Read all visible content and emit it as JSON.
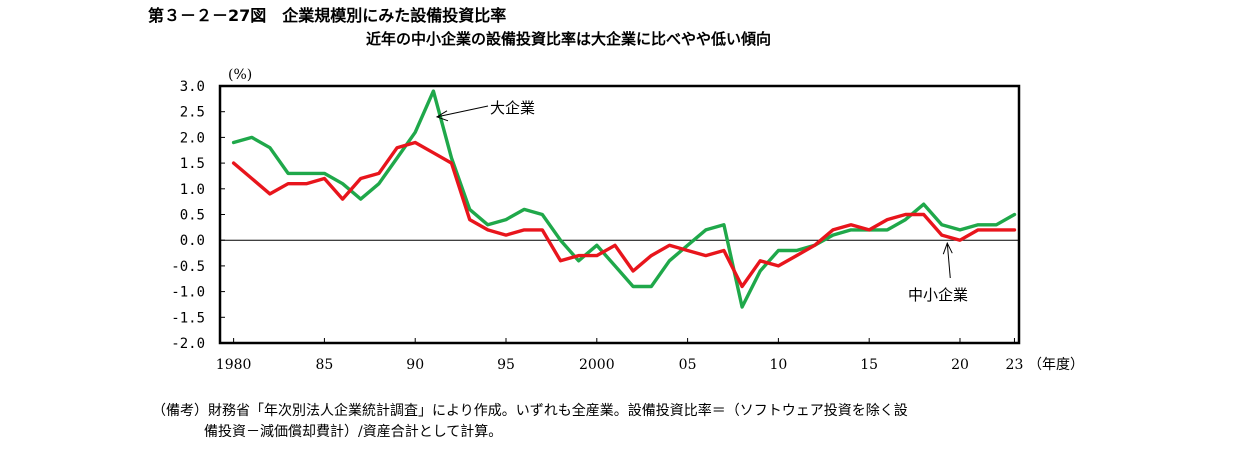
{
  "title": "第３－２－27図　企業規模別にみた設備投資比率",
  "subtitle": "近年の中小企業の設備投資比率は大企業に比べやや低い傾向",
  "note": {
    "line1": "（備考）財務省「年次別法人企業統計調査」により作成。いずれも全産業。設備投資比率＝（ソフトウェア投資を除く設",
    "line2": "備投資－減価償却費計）/資産合計として計算。"
  },
  "chart_data": {
    "type": "line",
    "ylabel": "(%)",
    "xlabel": "（年度）",
    "ylim": [
      -2.0,
      3.0
    ],
    "xlim": [
      1980,
      2023
    ],
    "grid": false,
    "yticks": [
      3.0,
      2.5,
      2.0,
      1.5,
      1.0,
      0.5,
      0.0,
      -0.5,
      -1.0,
      -1.5,
      -2.0
    ],
    "ytick_labels": [
      "3.0",
      "2.5",
      "2.0",
      "1.5",
      "1.0",
      "0.5",
      "0.0",
      "-0.5",
      "-1.0",
      "-1.5",
      "-2.0"
    ],
    "xticks": [
      1980,
      1985,
      1990,
      1995,
      2000,
      2005,
      2010,
      2015,
      2020,
      2023
    ],
    "xtick_labels": [
      "1980",
      "85",
      "90",
      "95",
      "2000",
      "05",
      "10",
      "15",
      "20",
      "23"
    ],
    "x": [
      1980,
      1981,
      1982,
      1983,
      1984,
      1985,
      1986,
      1987,
      1988,
      1989,
      1990,
      1991,
      1992,
      1993,
      1994,
      1995,
      1996,
      1997,
      1998,
      1999,
      2000,
      2001,
      2002,
      2003,
      2004,
      2005,
      2006,
      2007,
      2008,
      2009,
      2010,
      2011,
      2012,
      2013,
      2014,
      2015,
      2016,
      2017,
      2018,
      2019,
      2020,
      2021,
      2022,
      2023
    ],
    "series": [
      {
        "name": "大企業",
        "color": "#1fa84a",
        "values": [
          1.9,
          2.0,
          1.8,
          1.3,
          1.3,
          1.3,
          1.1,
          0.8,
          1.1,
          1.6,
          2.1,
          2.9,
          1.6,
          0.6,
          0.3,
          0.4,
          0.6,
          0.5,
          0.0,
          -0.4,
          -0.1,
          -0.5,
          -0.9,
          -0.9,
          -0.4,
          -0.1,
          0.2,
          0.3,
          -1.3,
          -0.6,
          -0.2,
          -0.2,
          -0.1,
          0.1,
          0.2,
          0.2,
          0.2,
          0.4,
          0.7,
          0.3,
          0.2,
          0.3,
          0.3,
          0.5
        ]
      },
      {
        "name": "中小企業",
        "color": "#e8151c",
        "values": [
          1.5,
          1.2,
          0.9,
          1.1,
          1.1,
          1.2,
          0.8,
          1.2,
          1.3,
          1.8,
          1.9,
          1.7,
          1.5,
          0.4,
          0.2,
          0.1,
          0.2,
          0.2,
          -0.4,
          -0.3,
          -0.3,
          -0.1,
          -0.6,
          -0.3,
          -0.1,
          -0.2,
          -0.3,
          -0.2,
          -0.9,
          -0.4,
          -0.5,
          -0.3,
          -0.1,
          0.2,
          0.3,
          0.2,
          0.4,
          0.5,
          0.5,
          0.1,
          0.0,
          0.2,
          0.2,
          0.2
        ]
      }
    ],
    "annotations": [
      {
        "text": "大企業",
        "x": 1991.2,
        "y": 2.4
      },
      {
        "text": "中小企業",
        "x": 2019.3,
        "y": 0.0
      }
    ]
  }
}
